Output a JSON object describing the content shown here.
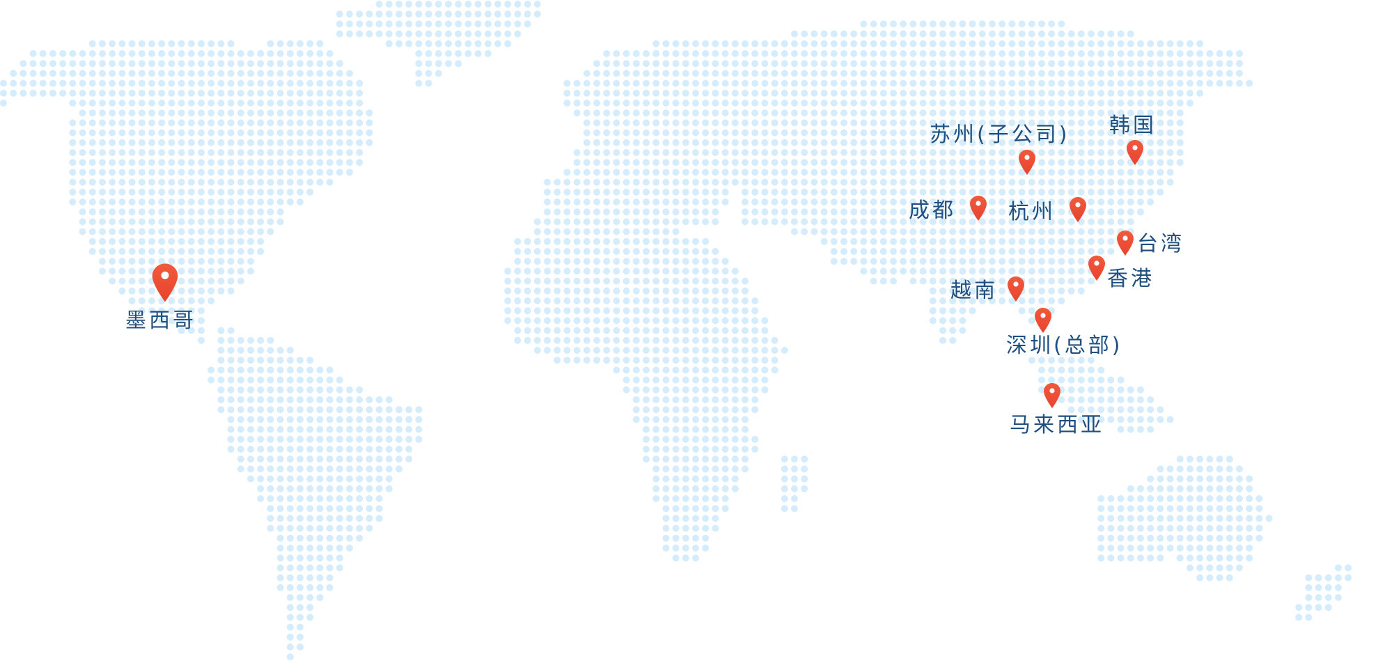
{
  "map": {
    "dot_color": "#d4ecfb",
    "pin_color": "#e8432f",
    "label_color": "#1f4f7f",
    "locations": [
      {
        "id": "mexico",
        "label": "墨西哥",
        "icon": "map-pin-icon"
      },
      {
        "id": "suzhou",
        "label": "苏州(子公司)",
        "icon": "map-pin-icon"
      },
      {
        "id": "korea",
        "label": "韩国",
        "icon": "map-pin-icon"
      },
      {
        "id": "chengdu",
        "label": "成都",
        "icon": "map-pin-icon"
      },
      {
        "id": "hangzhou",
        "label": "杭州",
        "icon": "map-pin-icon"
      },
      {
        "id": "taiwan",
        "label": "台湾",
        "icon": "map-pin-icon"
      },
      {
        "id": "hongkong",
        "label": "香港",
        "icon": "map-pin-icon"
      },
      {
        "id": "vietnam",
        "label": "越南",
        "icon": "map-pin-icon"
      },
      {
        "id": "shenzhen",
        "label": "深圳(总部)",
        "icon": "map-pin-icon"
      },
      {
        "id": "malaysia",
        "label": "马来西亚",
        "icon": "map-pin-icon"
      }
    ]
  }
}
